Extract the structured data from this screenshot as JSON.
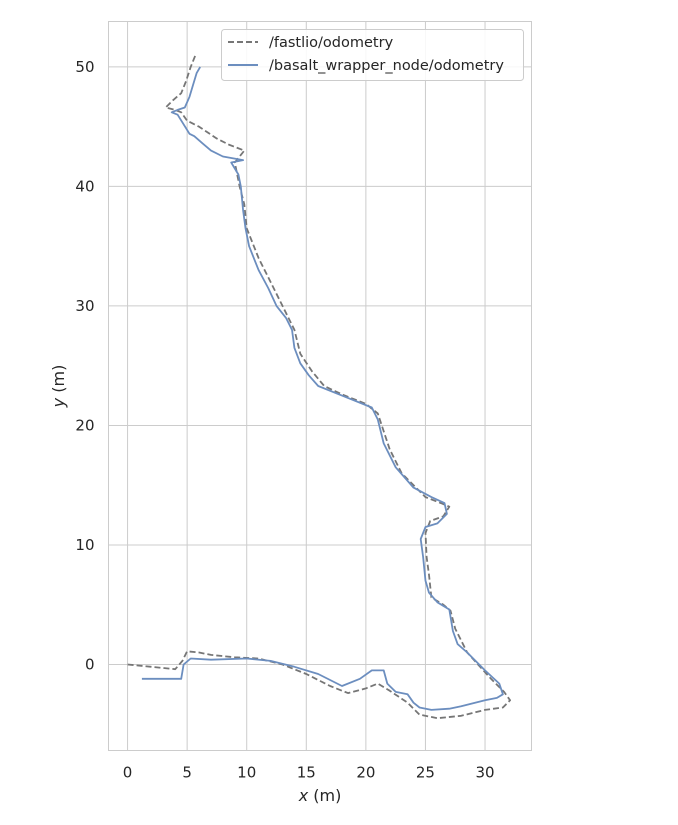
{
  "chart_data": {
    "type": "line",
    "xlabel_var": "x",
    "xlabel_unit": " (m)",
    "ylabel_var": "y",
    "ylabel_unit": " (m)",
    "xlim": [
      -1.6,
      33.9
    ],
    "ylim": [
      -7.2,
      53.8
    ],
    "xticks": [
      0,
      5,
      10,
      15,
      20,
      25,
      30
    ],
    "yticks": [
      0,
      10,
      20,
      30,
      40,
      50
    ],
    "grid": true,
    "legend_position": "top-right",
    "series": [
      {
        "name": "/fastlio/odometry",
        "color": "#767676",
        "dash": "dashed",
        "points": [
          [
            0,
            0
          ],
          [
            2,
            -0.2
          ],
          [
            4,
            -0.4
          ],
          [
            4.6,
            0.3
          ],
          [
            5,
            1.1
          ],
          [
            6,
            1.0
          ],
          [
            7,
            0.8
          ],
          [
            9,
            0.6
          ],
          [
            11,
            0.5
          ],
          [
            13,
            0
          ],
          [
            15,
            -0.8
          ],
          [
            17,
            -1.8
          ],
          [
            18.5,
            -2.4
          ],
          [
            20,
            -2.0
          ],
          [
            21,
            -1.6
          ],
          [
            22,
            -2.2
          ],
          [
            23.5,
            -3.2
          ],
          [
            24.5,
            -4.2
          ],
          [
            26,
            -4.5
          ],
          [
            28,
            -4.3
          ],
          [
            30,
            -3.8
          ],
          [
            31.5,
            -3.6
          ],
          [
            32.1,
            -3.0
          ],
          [
            31.6,
            -2.3
          ],
          [
            30.5,
            -1.2
          ],
          [
            28.5,
            1.0
          ],
          [
            27.5,
            3.0
          ],
          [
            27.1,
            4.5
          ],
          [
            26.5,
            5.0
          ],
          [
            25.5,
            5.6
          ],
          [
            25.3,
            7.5
          ],
          [
            25.1,
            9.0
          ],
          [
            25,
            11.0
          ],
          [
            25.4,
            12.0
          ],
          [
            26.5,
            12.4
          ],
          [
            27,
            13.2
          ],
          [
            26.3,
            13.5
          ],
          [
            25,
            14.0
          ],
          [
            23,
            16.0
          ],
          [
            22,
            18.0
          ],
          [
            21,
            21.0
          ],
          [
            20,
            21.8
          ],
          [
            18,
            22.6
          ],
          [
            16.5,
            23.3
          ],
          [
            15.5,
            24.5
          ],
          [
            14.5,
            26.0
          ],
          [
            14,
            28.0
          ],
          [
            13,
            30.0
          ],
          [
            12,
            32.0
          ],
          [
            11,
            34.0
          ],
          [
            10,
            36.5
          ],
          [
            9.8,
            38.5
          ],
          [
            9.4,
            40.0
          ],
          [
            9.2,
            41.0
          ],
          [
            9,
            42.0
          ],
          [
            9.8,
            43.0
          ],
          [
            8.5,
            43.5
          ],
          [
            7.5,
            44.0
          ],
          [
            6,
            45.0
          ],
          [
            5,
            45.5
          ],
          [
            4.5,
            46.2
          ],
          [
            4,
            46.4
          ],
          [
            3.2,
            46.6
          ],
          [
            3.8,
            47.2
          ],
          [
            4.5,
            47.8
          ],
          [
            4.9,
            48.8
          ],
          [
            5.3,
            50.0
          ],
          [
            5.7,
            51.0
          ]
        ]
      },
      {
        "name": "/basalt_wrapper_node/odometry",
        "color": "#6c8ebf",
        "dash": "solid",
        "points": [
          [
            1.2,
            -1.2
          ],
          [
            3,
            -1.2
          ],
          [
            4.5,
            -1.2
          ],
          [
            4.7,
            0
          ],
          [
            5.3,
            0.5
          ],
          [
            7,
            0.4
          ],
          [
            10,
            0.5
          ],
          [
            12,
            0.3
          ],
          [
            14,
            -0.2
          ],
          [
            16,
            -0.8
          ],
          [
            18,
            -1.8
          ],
          [
            19.5,
            -1.2
          ],
          [
            20.5,
            -0.5
          ],
          [
            21.5,
            -0.5
          ],
          [
            21.8,
            -1.6
          ],
          [
            22.5,
            -2.3
          ],
          [
            23.5,
            -2.5
          ],
          [
            24,
            -3.2
          ],
          [
            24.5,
            -3.6
          ],
          [
            25.5,
            -3.8
          ],
          [
            27,
            -3.7
          ],
          [
            28,
            -3.5
          ],
          [
            30,
            -3.0
          ],
          [
            31,
            -2.8
          ],
          [
            31.5,
            -2.5
          ],
          [
            31.2,
            -1.6
          ],
          [
            30,
            -0.5
          ],
          [
            28.5,
            1.0
          ],
          [
            27.7,
            1.7
          ],
          [
            27.3,
            2.8
          ],
          [
            27,
            4.6
          ],
          [
            26,
            5.2
          ],
          [
            25.3,
            6.0
          ],
          [
            25,
            7.0
          ],
          [
            24.8,
            9.0
          ],
          [
            24.6,
            10.5
          ],
          [
            25,
            11.5
          ],
          [
            26,
            11.8
          ],
          [
            26.8,
            12.6
          ],
          [
            26.6,
            13.5
          ],
          [
            25.5,
            14.0
          ],
          [
            24,
            14.8
          ],
          [
            22.5,
            16.5
          ],
          [
            21.5,
            18.5
          ],
          [
            21,
            20.5
          ],
          [
            20.5,
            21.5
          ],
          [
            18,
            22.5
          ],
          [
            16,
            23.3
          ],
          [
            15.2,
            24.2
          ],
          [
            14.5,
            25.2
          ],
          [
            14,
            26.5
          ],
          [
            13.8,
            28.0
          ],
          [
            13.3,
            29.0
          ],
          [
            12.5,
            30.0
          ],
          [
            11.8,
            31.5
          ],
          [
            11,
            33.0
          ],
          [
            10.2,
            35.0
          ],
          [
            9.9,
            36.5
          ],
          [
            9.7,
            38.0
          ],
          [
            9.5,
            40.0
          ],
          [
            9.3,
            41.0
          ],
          [
            8.7,
            42.0
          ],
          [
            9.7,
            42.2
          ],
          [
            8,
            42.5
          ],
          [
            7,
            43.0
          ],
          [
            6.3,
            43.6
          ],
          [
            5.6,
            44.2
          ],
          [
            5.2,
            44.4
          ],
          [
            4.7,
            45.2
          ],
          [
            4.2,
            46.0
          ],
          [
            3.7,
            46.2
          ],
          [
            4.2,
            46.4
          ],
          [
            4.8,
            46.6
          ],
          [
            5.2,
            47.5
          ],
          [
            5.5,
            48.5
          ],
          [
            5.8,
            49.5
          ],
          [
            6.1,
            50.0
          ]
        ]
      }
    ]
  }
}
